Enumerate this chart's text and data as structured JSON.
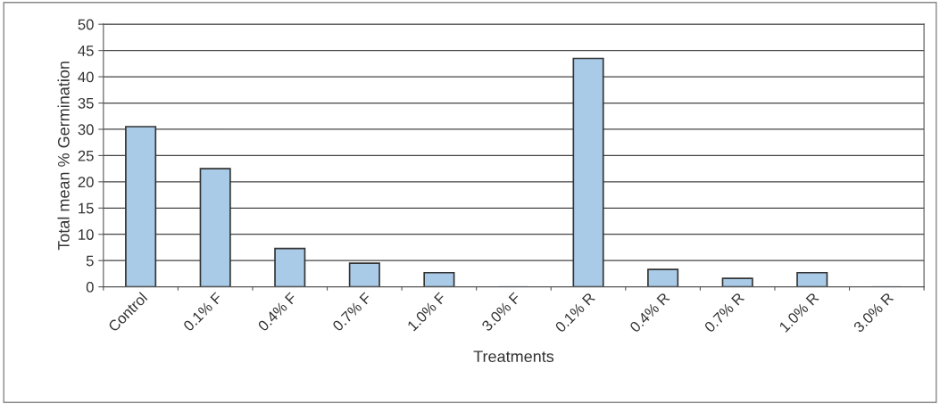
{
  "chart_data": {
    "type": "bar",
    "xlabel": "Treatments",
    "ylabel": "Total mean % Germination",
    "categories": [
      "Control",
      "0.1% F",
      "0.4% F",
      "0.7% F",
      "1.0% F",
      "3.0% F",
      "0.1% R",
      "0.4% R",
      "0.7% R",
      "1.0% R",
      "3.0% R"
    ],
    "values": [
      30.5,
      22.5,
      7.3,
      4.5,
      2.7,
      0,
      43.5,
      3.3,
      1.6,
      2.7,
      0
    ],
    "color": "#a9cbe8",
    "ylim": [
      0,
      50
    ],
    "yticks": [
      0,
      5,
      10,
      15,
      20,
      25,
      30,
      35,
      40,
      45,
      50
    ],
    "grid": "y",
    "legend": false
  }
}
